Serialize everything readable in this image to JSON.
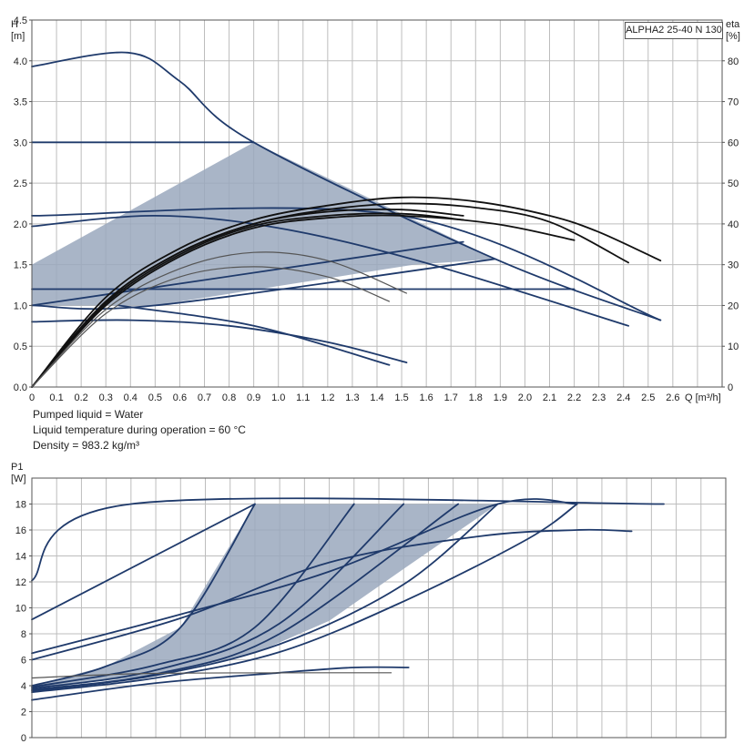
{
  "model_label": "ALPHA2 25-40 N 130",
  "conditions": {
    "line1": "Pumped liquid = Water",
    "line2": "Liquid temperature during operation = 60 °C",
    "line3": "Density = 983.2 kg/m³"
  },
  "chart_data": [
    {
      "id": "head",
      "type": "line",
      "y_axis_label": "H",
      "y_axis_unit": "[m]",
      "y2_axis_label": "eta",
      "y2_axis_unit": "[%]",
      "x_axis_label": "Q [m³/h]",
      "xlim": [
        0,
        2.8
      ],
      "ylim": [
        0,
        4.5
      ],
      "y2lim": [
        0,
        90
      ],
      "x_ticks": [
        "0",
        "0.1",
        "0.2",
        "0.3",
        "0.4",
        "0.5",
        "0.6",
        "0.7",
        "0.8",
        "0.9",
        "1.0",
        "1.1",
        "1.2",
        "1.3",
        "1.4",
        "1.5",
        "1.6",
        "1.7",
        "1.8",
        "1.9",
        "2.0",
        "2.1",
        "2.2",
        "2.3",
        "2.4",
        "2.5",
        "2.6"
      ],
      "y_ticks": [
        "0.0",
        "0.5",
        "1.0",
        "1.5",
        "2.0",
        "2.5",
        "3.0",
        "3.5",
        "4.0",
        "4.5"
      ],
      "y2_ticks": [
        "0",
        "10",
        "20",
        "30",
        "40",
        "50",
        "60",
        "70",
        "80"
      ],
      "grid": true,
      "shaded_region": [
        [
          0,
          1.0
        ],
        [
          0,
          1.5
        ],
        [
          0.9,
          3.0
        ],
        [
          1.88,
          1.57
        ],
        [
          1.55,
          1.5
        ],
        [
          0.5,
          1.0
        ]
      ],
      "series": [
        {
          "role": "head",
          "points": [
            [
              0,
              3.93
            ],
            [
              0.39,
              4.1
            ],
            [
              0.6,
              3.75
            ],
            [
              0.9,
              3.0
            ],
            [
              1.88,
              1.57
            ],
            [
              2.55,
              0.82
            ]
          ]
        },
        {
          "role": "head",
          "points": [
            [
              0,
              3.0
            ],
            [
              0.9,
              3.0
            ]
          ]
        },
        {
          "role": "head",
          "points": [
            [
              0,
              2.1
            ],
            [
              1.5,
              2.1
            ],
            [
              2.55,
              0.82
            ]
          ]
        },
        {
          "role": "head",
          "points": [
            [
              0,
              1.97
            ],
            [
              0.5,
              2.1
            ],
            [
              1.0,
              1.95
            ],
            [
              1.6,
              1.52
            ],
            [
              2.42,
              0.75
            ]
          ]
        },
        {
          "role": "head",
          "points": [
            [
              0,
              1.2
            ],
            [
              1.5,
              1.2
            ],
            [
              2.2,
              1.2
            ]
          ]
        },
        {
          "role": "head",
          "points": [
            [
              0,
              1.0
            ],
            [
              1.75,
              1.78
            ]
          ]
        },
        {
          "role": "head",
          "points": [
            [
              0,
              1.0
            ],
            [
              0.5,
              1.0
            ],
            [
              1.88,
              1.57
            ]
          ]
        },
        {
          "role": "head",
          "points": [
            [
              0,
              0.8
            ],
            [
              0.4,
              0.82
            ],
            [
              0.8,
              0.75
            ],
            [
              1.2,
              0.55
            ],
            [
              1.52,
              0.3
            ]
          ]
        },
        {
          "role": "head",
          "points": [
            [
              0.35,
              1.0
            ],
            [
              0.9,
              0.75
            ],
            [
              1.45,
              0.27
            ]
          ]
        },
        {
          "role": "efficiency",
          "points": [
            [
              0,
              0
            ],
            [
              0.3,
              22
            ],
            [
              0.6,
              34
            ],
            [
              0.9,
              41
            ],
            [
              1.2,
              44.5
            ],
            [
              1.5,
              46.5
            ],
            [
              1.8,
              45.5
            ],
            [
              2.1,
              42
            ],
            [
              2.3,
              38
            ],
            [
              2.55,
              31
            ]
          ]
        },
        {
          "role": "efficiency",
          "points": [
            [
              0,
              0
            ],
            [
              0.3,
              21
            ],
            [
              0.6,
              33
            ],
            [
              0.9,
              40
            ],
            [
              1.2,
              43.5
            ],
            [
              1.5,
              45
            ],
            [
              1.8,
              44
            ],
            [
              2.1,
              40.5
            ],
            [
              2.42,
              30.5
            ]
          ]
        },
        {
          "role": "efficiency",
          "points": [
            [
              0,
              0
            ],
            [
              0.3,
              21
            ],
            [
              0.6,
              33
            ],
            [
              0.9,
              40
            ],
            [
              1.2,
              43
            ],
            [
              1.5,
              43.5
            ],
            [
              1.75,
              42
            ]
          ]
        },
        {
          "role": "efficiency",
          "points": [
            [
              0,
              0
            ],
            [
              0.3,
              20.5
            ],
            [
              0.6,
              32.5
            ],
            [
              0.9,
              39.5
            ],
            [
              1.2,
              42
            ],
            [
              1.5,
              42.5
            ],
            [
              1.75,
              41
            ]
          ]
        },
        {
          "role": "efficiency",
          "points": [
            [
              0,
              0
            ],
            [
              0.3,
              20
            ],
            [
              0.6,
              32
            ],
            [
              0.9,
              39
            ],
            [
              1.2,
              41.5
            ],
            [
              1.5,
              42
            ],
            [
              1.88,
              40
            ],
            [
              2.2,
              36
            ]
          ]
        },
        {
          "role": "efficiency",
          "points": [
            [
              0,
              0
            ],
            [
              0.3,
              19
            ],
            [
              0.6,
              29
            ],
            [
              0.9,
              33
            ],
            [
              1.2,
              31
            ],
            [
              1.52,
              23
            ]
          ]
        },
        {
          "role": "efficiency",
          "points": [
            [
              0,
              0
            ],
            [
              0.3,
              18
            ],
            [
              0.6,
              27
            ],
            [
              0.9,
              29.5
            ],
            [
              1.2,
              27
            ],
            [
              1.45,
              21
            ]
          ]
        }
      ]
    },
    {
      "id": "power",
      "type": "line",
      "y_axis_label": "P1",
      "y_axis_unit": "[W]",
      "xlim": [
        0,
        2.8
      ],
      "ylim": [
        0,
        20
      ],
      "y_ticks": [
        "0",
        "2",
        "4",
        "6",
        "8",
        "10",
        "12",
        "14",
        "16",
        "18"
      ],
      "grid": true,
      "shaded_region": [
        [
          0,
          4.0
        ],
        [
          0.3,
          5.5
        ],
        [
          0.6,
          8.5
        ],
        [
          0.9,
          18
        ],
        [
          1.88,
          18
        ],
        [
          1.5,
          13
        ],
        [
          1.2,
          9
        ],
        [
          0.9,
          6.5
        ],
        [
          0.5,
          4.8
        ],
        [
          0,
          3.8
        ]
      ],
      "series": [
        {
          "role": "power",
          "points": [
            [
              0,
              12.1
            ],
            [
              0.4,
              18
            ],
            [
              2.55,
              18
            ]
          ]
        },
        {
          "role": "power",
          "points": [
            [
              0,
              9.1
            ],
            [
              0.9,
              18
            ]
          ]
        },
        {
          "role": "power",
          "points": [
            [
              0,
              6.5
            ],
            [
              0.6,
              9.5
            ],
            [
              1.2,
              12.8
            ],
            [
              1.88,
              18
            ],
            [
              2.2,
              18
            ]
          ]
        },
        {
          "role": "power",
          "points": [
            [
              0,
              6.0
            ],
            [
              0.6,
              9.2
            ],
            [
              1.2,
              13.5
            ],
            [
              1.8,
              15.5
            ],
            [
              2.2,
              16.0
            ],
            [
              2.42,
              15.9
            ]
          ]
        },
        {
          "role": "power",
          "points": [
            [
              0,
              4.0
            ],
            [
              0.3,
              5.5
            ],
            [
              0.6,
              8.5
            ],
            [
              0.9,
              18
            ]
          ]
        },
        {
          "role": "power",
          "points": [
            [
              0,
              3.9
            ],
            [
              0.5,
              5.6
            ],
            [
              0.9,
              8.5
            ],
            [
              1.3,
              18
            ]
          ]
        },
        {
          "role": "power",
          "points": [
            [
              0,
              3.8
            ],
            [
              0.5,
              5.2
            ],
            [
              1.0,
              8.8
            ],
            [
              1.5,
              18
            ]
          ]
        },
        {
          "role": "power",
          "points": [
            [
              0,
              3.7
            ],
            [
              0.5,
              4.9
            ],
            [
              1.0,
              8.0
            ],
            [
              1.72,
              18
            ]
          ]
        },
        {
          "role": "power",
          "points": [
            [
              0,
              3.6
            ],
            [
              0.5,
              4.8
            ],
            [
              1.0,
              7.2
            ],
            [
              1.5,
              11.8
            ],
            [
              1.88,
              18
            ]
          ]
        },
        {
          "role": "power",
          "points": [
            [
              0,
              3.5
            ],
            [
              0.5,
              4.6
            ],
            [
              1.0,
              6.6
            ],
            [
              1.5,
              10.5
            ],
            [
              2.0,
              15.3
            ],
            [
              2.2,
              18
            ]
          ]
        },
        {
          "role": "power",
          "points": [
            [
              0,
              2.9
            ],
            [
              0.5,
              4.2
            ],
            [
              1.0,
              5.0
            ],
            [
              1.3,
              5.4
            ],
            [
              1.52,
              5.4
            ]
          ]
        },
        {
          "role": "power",
          "points": [
            [
              0,
              4.6
            ],
            [
              0.5,
              4.95
            ],
            [
              1.45,
              5.0
            ]
          ]
        }
      ]
    }
  ],
  "colors": {
    "curve": "#1f3a6b",
    "eta_curve": "#111111",
    "eta_thin": "#555555",
    "shade": "#9aa8bd",
    "grid": "#bdbdbd",
    "frame": "#555555"
  }
}
